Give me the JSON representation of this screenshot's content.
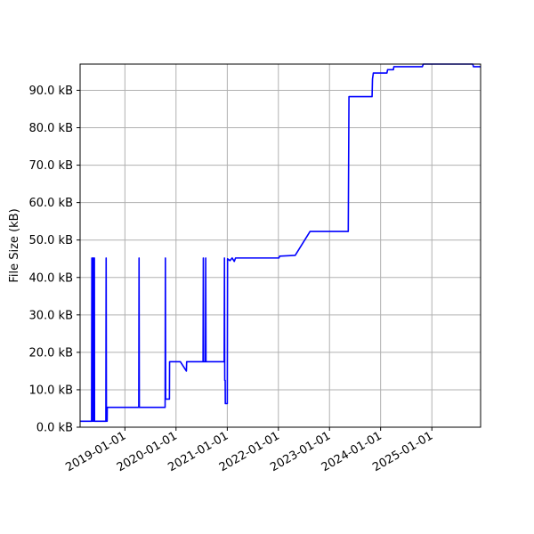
{
  "chart_data": {
    "type": "line",
    "title": "",
    "xlabel": "",
    "ylabel": "File Size (kB)",
    "grid": true,
    "legend": "none",
    "line_color": "#0000ff",
    "xlim": [
      "2018-02-15",
      "2025-12-15"
    ],
    "ylim": [
      0,
      97
    ],
    "x_ticks": [
      "2019-01-01",
      "2020-01-01",
      "2021-01-01",
      "2022-01-01",
      "2023-01-01",
      "2024-01-01",
      "2025-01-01"
    ],
    "y_ticks": [
      {
        "value": 0,
        "label": "0.0 kB"
      },
      {
        "value": 10,
        "label": "10.0 kB"
      },
      {
        "value": 20,
        "label": "20.0 kB"
      },
      {
        "value": 30,
        "label": "30.0 kB"
      },
      {
        "value": 40,
        "label": "40.0 kB"
      },
      {
        "value": 50,
        "label": "50.0 kB"
      },
      {
        "value": 60,
        "label": "60.0 kB"
      },
      {
        "value": 70,
        "label": "70.0 kB"
      },
      {
        "value": 80,
        "label": "80.0 kB"
      },
      {
        "value": 90,
        "label": "90.0 kB"
      }
    ],
    "series": [
      {
        "points": [
          [
            "2018-02-15",
            1.6
          ],
          [
            "2018-05-08",
            1.6
          ],
          [
            "2018-05-10",
            45.2
          ],
          [
            "2018-05-11",
            1.6
          ],
          [
            "2018-05-16",
            45.2
          ],
          [
            "2018-05-17",
            1.6
          ],
          [
            "2018-05-22",
            45.2
          ],
          [
            "2018-05-23",
            1.6
          ],
          [
            "2018-05-28",
            45.2
          ],
          [
            "2018-05-29",
            1.6
          ],
          [
            "2018-08-18",
            1.6
          ],
          [
            "2018-08-20",
            45.2
          ],
          [
            "2018-08-22",
            1.6
          ],
          [
            "2018-08-27",
            1.6
          ],
          [
            "2018-08-28",
            5.3
          ],
          [
            "2019-04-10",
            5.3
          ],
          [
            "2019-04-12",
            45.2
          ],
          [
            "2019-04-14",
            5.3
          ],
          [
            "2019-10-15",
            5.3
          ],
          [
            "2019-10-17",
            45.2
          ],
          [
            "2019-10-19",
            7.5
          ],
          [
            "2019-11-15",
            7.5
          ],
          [
            "2019-11-16",
            17.5
          ],
          [
            "2020-02-01",
            17.5
          ],
          [
            "2020-03-15",
            15.0
          ],
          [
            "2020-03-17",
            17.5
          ],
          [
            "2020-07-12",
            17.5
          ],
          [
            "2020-07-14",
            45.2
          ],
          [
            "2020-07-16",
            17.5
          ],
          [
            "2020-07-29",
            17.5
          ],
          [
            "2020-07-31",
            45.2
          ],
          [
            "2020-08-02",
            17.5
          ],
          [
            "2020-12-10",
            17.5
          ],
          [
            "2020-12-12",
            45.2
          ],
          [
            "2020-12-14",
            12.5
          ],
          [
            "2020-12-17",
            12.5
          ],
          [
            "2020-12-18",
            6.3
          ],
          [
            "2021-01-01",
            6.3
          ],
          [
            "2021-01-03",
            45.0
          ],
          [
            "2021-01-20",
            44.5
          ],
          [
            "2021-02-05",
            45.2
          ],
          [
            "2021-02-20",
            44.3
          ],
          [
            "2021-03-01",
            45.2
          ],
          [
            "2022-01-05",
            45.2
          ],
          [
            "2022-01-10",
            45.7
          ],
          [
            "2022-05-01",
            45.9
          ],
          [
            "2022-08-15",
            52.3
          ],
          [
            "2023-05-15",
            52.3
          ],
          [
            "2023-05-20",
            88.3
          ],
          [
            "2023-11-01",
            88.3
          ],
          [
            "2023-11-04",
            93.0
          ],
          [
            "2023-11-10",
            94.6
          ],
          [
            "2024-02-15",
            94.6
          ],
          [
            "2024-02-20",
            95.5
          ],
          [
            "2024-04-01",
            95.5
          ],
          [
            "2024-04-05",
            96.3
          ],
          [
            "2024-10-25",
            96.3
          ],
          [
            "2024-11-01",
            97.2
          ],
          [
            "2025-10-20",
            97.2
          ],
          [
            "2025-10-25",
            96.3
          ],
          [
            "2025-12-15",
            96.3
          ]
        ]
      }
    ]
  }
}
